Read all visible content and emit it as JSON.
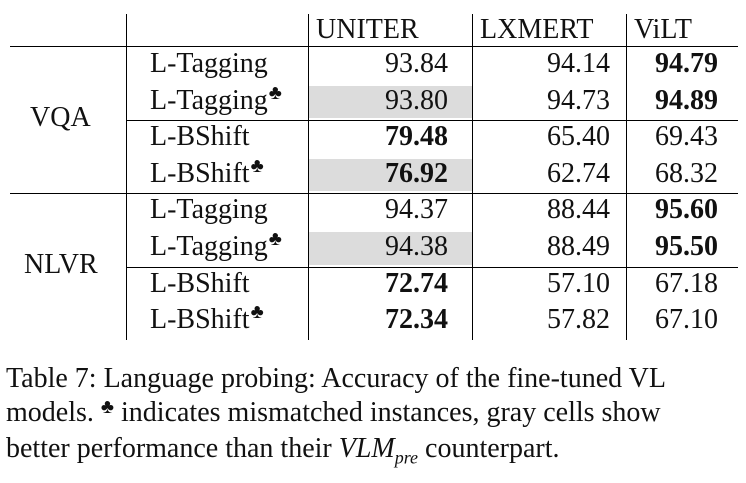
{
  "table": {
    "headers": [
      "UNITER",
      "LXMERT",
      "ViLT"
    ],
    "groups": [
      {
        "dataset": "VQA",
        "rows": [
          {
            "probe": "L-Tagging",
            "mismatched": false,
            "values": [
              "93.84",
              "94.14",
              "94.79"
            ],
            "bold": [
              false,
              false,
              true
            ],
            "gray": [
              false,
              false,
              false
            ]
          },
          {
            "probe": "L-Tagging",
            "mismatched": true,
            "values": [
              "93.80",
              "94.73",
              "94.89"
            ],
            "bold": [
              false,
              false,
              true
            ],
            "gray": [
              true,
              false,
              false
            ]
          },
          {
            "probe": "L-BShift",
            "mismatched": false,
            "values": [
              "79.48",
              "65.40",
              "69.43"
            ],
            "bold": [
              true,
              false,
              false
            ],
            "gray": [
              false,
              false,
              false
            ]
          },
          {
            "probe": "L-BShift",
            "mismatched": true,
            "values": [
              "76.92",
              "62.74",
              "68.32"
            ],
            "bold": [
              true,
              false,
              false
            ],
            "gray": [
              true,
              false,
              false
            ]
          }
        ]
      },
      {
        "dataset": "NLVR",
        "rows": [
          {
            "probe": "L-Tagging",
            "mismatched": false,
            "values": [
              "94.37",
              "88.44",
              "95.60"
            ],
            "bold": [
              false,
              false,
              true
            ],
            "gray": [
              false,
              false,
              false
            ]
          },
          {
            "probe": "L-Tagging",
            "mismatched": true,
            "values": [
              "94.38",
              "88.49",
              "95.50"
            ],
            "bold": [
              false,
              false,
              true
            ],
            "gray": [
              true,
              false,
              false
            ]
          },
          {
            "probe": "L-BShift",
            "mismatched": false,
            "values": [
              "72.74",
              "57.10",
              "67.18"
            ],
            "bold": [
              true,
              false,
              false
            ],
            "gray": [
              false,
              false,
              false
            ]
          },
          {
            "probe": "L-BShift",
            "mismatched": true,
            "values": [
              "72.34",
              "57.82",
              "67.10"
            ],
            "bold": [
              true,
              false,
              false
            ],
            "gray": [
              false,
              false,
              false
            ]
          }
        ]
      }
    ],
    "club_symbol": "♣"
  },
  "caption": {
    "line1": "Table 7: Language probing: Accuracy of the fine-tuned VL",
    "line2_a": "models. ",
    "line2_b": " indicates mismatched instances, gray cells show",
    "line3": "better performance than their ",
    "math_base": "VLM",
    "math_sub": "pre",
    "line3_end": " counterpart."
  }
}
